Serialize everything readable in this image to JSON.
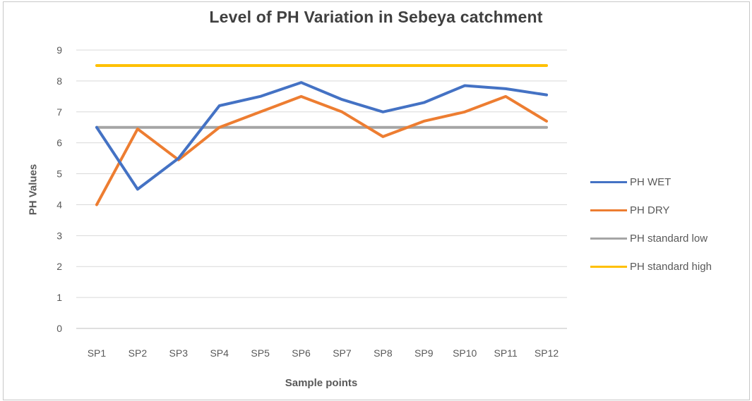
{
  "chart_data": {
    "type": "line",
    "title": "Level of PH Variation in Sebeya catchment",
    "xlabel": "Sample points",
    "ylabel": "PH Values",
    "categories": [
      "SP1",
      "SP2",
      "SP3",
      "SP4",
      "SP5",
      "SP6",
      "SP7",
      "SP8",
      "SP9",
      "SP10",
      "SP11",
      "SP12"
    ],
    "ylim": [
      0,
      9
    ],
    "yticks": [
      "0",
      "1",
      "2",
      "3",
      "4",
      "5",
      "6",
      "7",
      "8",
      "9"
    ],
    "grid": true,
    "legend_position": "right",
    "series": [
      {
        "name": "PH WET",
        "color": "#4472c4",
        "values": [
          6.5,
          4.5,
          5.5,
          7.2,
          7.5,
          7.95,
          7.4,
          7.0,
          7.3,
          7.85,
          7.75,
          7.55
        ]
      },
      {
        "name": "PH DRY",
        "color": "#ed7d31",
        "values": [
          4.0,
          6.45,
          5.45,
          6.5,
          7.0,
          7.5,
          7.0,
          6.2,
          6.7,
          7.0,
          7.5,
          6.7
        ]
      },
      {
        "name": "PH standard low",
        "color": "#a5a5a5",
        "values": [
          6.5,
          6.5,
          6.5,
          6.5,
          6.5,
          6.5,
          6.5,
          6.5,
          6.5,
          6.5,
          6.5,
          6.5
        ]
      },
      {
        "name": "PH standard high",
        "color": "#ffc000",
        "values": [
          8.5,
          8.5,
          8.5,
          8.5,
          8.5,
          8.5,
          8.5,
          8.5,
          8.5,
          8.5,
          8.5,
          8.5
        ]
      }
    ]
  }
}
